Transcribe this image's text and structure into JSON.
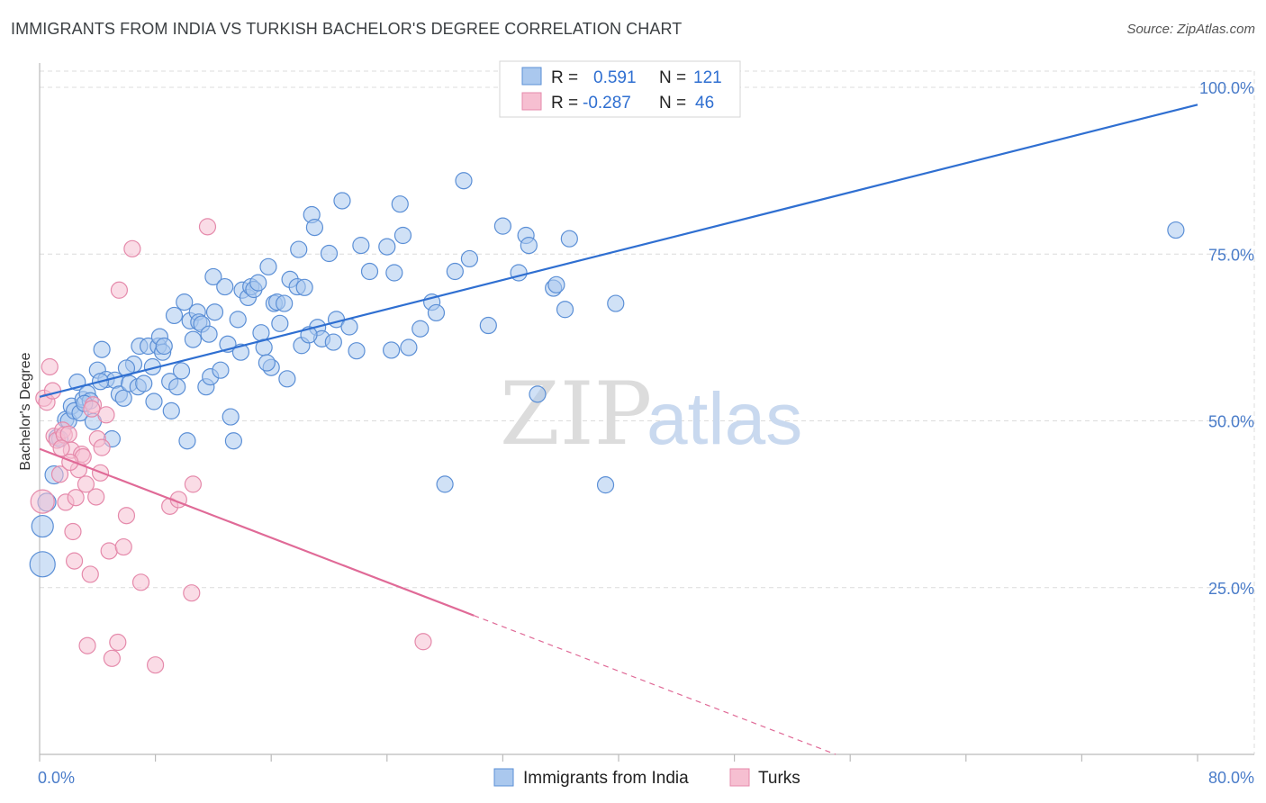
{
  "title": "IMMIGRANTS FROM INDIA VS TURKISH BACHELOR'S DEGREE CORRELATION CHART",
  "source": "Source: ZipAtlas.com",
  "watermark": {
    "zip": "ZIP",
    "atlas": "atlas"
  },
  "colors": {
    "blue_fill": "#aac8ee",
    "blue_stroke": "#5b8fd6",
    "blue_line": "#2f6fd1",
    "pink_fill": "#f6bfd1",
    "pink_stroke": "#e58aab",
    "pink_line": "#e06a97",
    "grid": "#dcdcdc",
    "tick_label": "#4a7cc9"
  },
  "legend": {
    "rows": [
      {
        "r_label": "R = ",
        "r_value": "0.591",
        "n_label": "N = ",
        "n_value": "121"
      },
      {
        "r_label": "R = ",
        "r_value": "-0.287",
        "n_label": "N = ",
        "n_value": "46"
      }
    ]
  },
  "chart_data": {
    "type": "scatter",
    "ylabel": "Bachelor's Degree",
    "xlim": [
      0,
      80
    ],
    "ylim": [
      0,
      105
    ],
    "x_tick_labels": [
      "0.0%",
      "80.0%"
    ],
    "y_ticks": [
      {
        "value": 25,
        "label": "25.0%"
      },
      {
        "value": 50,
        "label": "50.0%"
      },
      {
        "value": 75,
        "label": "75.0%"
      },
      {
        "value": 100,
        "label": "100.0%"
      }
    ],
    "grid": true,
    "series": [
      {
        "name": "Immigrants from India",
        "trend": {
          "x0": 0,
          "y0": 53.6,
          "x1": 80,
          "y1": 97.4,
          "solid_to": 80
        },
        "points": [
          [
            0.2,
            28.5,
            14
          ],
          [
            0.2,
            34.2,
            12
          ],
          [
            0.5,
            37.8,
            10
          ],
          [
            1.0,
            41.9,
            10
          ],
          [
            1.2,
            47.5,
            9
          ],
          [
            1.4,
            47.3,
            9
          ],
          [
            1.8,
            50.2,
            9
          ],
          [
            2.0,
            50.0,
            9
          ],
          [
            2.2,
            52.2,
            9
          ],
          [
            2.4,
            51.5,
            9
          ],
          [
            2.6,
            55.8,
            9
          ],
          [
            2.8,
            51.2,
            9
          ],
          [
            3.0,
            53.2,
            9
          ],
          [
            3.3,
            54.1,
            9
          ],
          [
            3.5,
            53.0,
            9
          ],
          [
            3.7,
            49.9,
            9
          ],
          [
            4.0,
            57.6,
            9
          ],
          [
            4.3,
            60.7,
            9
          ],
          [
            4.6,
            56.2,
            9
          ],
          [
            5.0,
            47.3,
            9
          ],
          [
            5.2,
            56.1,
            9
          ],
          [
            5.5,
            54.0,
            9
          ],
          [
            5.8,
            53.4,
            9
          ],
          [
            6.2,
            55.6,
            9
          ],
          [
            6.5,
            58.5,
            9
          ],
          [
            6.8,
            55.1,
            9
          ],
          [
            6.9,
            61.2,
            9
          ],
          [
            7.2,
            55.6,
            9
          ],
          [
            7.5,
            61.2,
            9
          ],
          [
            7.8,
            58.1,
            9
          ],
          [
            7.9,
            52.9,
            9
          ],
          [
            8.2,
            61.2,
            9
          ],
          [
            8.3,
            62.6,
            9
          ],
          [
            8.5,
            60.3,
            9
          ],
          [
            8.6,
            61.2,
            9
          ],
          [
            9.0,
            55.9,
            9
          ],
          [
            9.3,
            65.8,
            9
          ],
          [
            9.5,
            55.1,
            9
          ],
          [
            9.8,
            57.5,
            9
          ],
          [
            10.0,
            67.8,
            9
          ],
          [
            10.2,
            47.0,
            9
          ],
          [
            10.4,
            65.0,
            9
          ],
          [
            10.6,
            62.2,
            9
          ],
          [
            10.9,
            66.3,
            9
          ],
          [
            11.0,
            64.8,
            9
          ],
          [
            11.2,
            64.5,
            9
          ],
          [
            11.5,
            55.1,
            9
          ],
          [
            11.8,
            56.6,
            9
          ],
          [
            12.0,
            71.6,
            9
          ],
          [
            12.1,
            66.3,
            9
          ],
          [
            12.5,
            57.6,
            9
          ],
          [
            12.8,
            70.1,
            9
          ],
          [
            13.0,
            61.5,
            9
          ],
          [
            13.2,
            50.6,
            9
          ],
          [
            13.4,
            47.0,
            9
          ],
          [
            13.7,
            65.2,
            9
          ],
          [
            14.0,
            69.6,
            9
          ],
          [
            14.4,
            68.5,
            9
          ],
          [
            14.6,
            70.1,
            9
          ],
          [
            14.8,
            69.7,
            9
          ],
          [
            15.1,
            70.7,
            9
          ],
          [
            15.3,
            63.2,
            9
          ],
          [
            15.5,
            61.0,
            9
          ],
          [
            15.8,
            73.1,
            9
          ],
          [
            16.0,
            58.0,
            9
          ],
          [
            16.2,
            67.6,
            9
          ],
          [
            16.4,
            67.8,
            9
          ],
          [
            16.6,
            64.6,
            9
          ],
          [
            16.9,
            67.6,
            9
          ],
          [
            17.1,
            56.3,
            9
          ],
          [
            17.3,
            71.2,
            9
          ],
          [
            17.8,
            70.1,
            9
          ],
          [
            17.9,
            75.7,
            9
          ],
          [
            18.1,
            61.3,
            9
          ],
          [
            18.3,
            70.0,
            9
          ],
          [
            18.8,
            80.9,
            9
          ],
          [
            19.0,
            79.0,
            9
          ],
          [
            19.2,
            64.0,
            9
          ],
          [
            19.5,
            62.3,
            9
          ],
          [
            20.0,
            75.1,
            9
          ],
          [
            20.3,
            61.8,
            9
          ],
          [
            20.5,
            65.2,
            9
          ],
          [
            20.9,
            83.0,
            9
          ],
          [
            21.4,
            64.1,
            9
          ],
          [
            22.2,
            76.3,
            9
          ],
          [
            22.8,
            72.4,
            9
          ],
          [
            24.0,
            76.1,
            9
          ],
          [
            24.3,
            60.6,
            9
          ],
          [
            24.5,
            72.2,
            9
          ],
          [
            24.9,
            82.5,
            9
          ],
          [
            25.5,
            61.0,
            9
          ],
          [
            25.1,
            77.8,
            9
          ],
          [
            27.1,
            67.8,
            9
          ],
          [
            27.4,
            66.2,
            9
          ],
          [
            28.7,
            72.4,
            9
          ],
          [
            29.7,
            74.3,
            9
          ],
          [
            28.0,
            40.5,
            9
          ],
          [
            29.3,
            86.0,
            9
          ],
          [
            31.0,
            64.3,
            9
          ],
          [
            32.0,
            79.2,
            9
          ],
          [
            33.1,
            72.2,
            9
          ],
          [
            33.6,
            77.8,
            9
          ],
          [
            33.8,
            76.3,
            9
          ],
          [
            34.4,
            54.0,
            9
          ],
          [
            35.5,
            69.9,
            9
          ],
          [
            35.7,
            70.4,
            9
          ],
          [
            36.3,
            66.7,
            9
          ],
          [
            36.6,
            77.3,
            9
          ],
          [
            39.1,
            40.4,
            9
          ],
          [
            39.8,
            67.6,
            9
          ],
          [
            78.5,
            78.6,
            9
          ],
          [
            4.2,
            55.9,
            9
          ],
          [
            3.1,
            52.6,
            9
          ],
          [
            6.0,
            57.9,
            9
          ],
          [
            9.1,
            51.5,
            9
          ],
          [
            11.7,
            63.0,
            9
          ],
          [
            13.9,
            60.3,
            9
          ],
          [
            15.7,
            58.7,
            9
          ],
          [
            18.6,
            62.9,
            9
          ],
          [
            21.9,
            60.5,
            9
          ],
          [
            26.3,
            63.8,
            9
          ]
        ]
      },
      {
        "name": "Turks",
        "trend": {
          "x0": 0,
          "y0": 45.8,
          "x1": 55,
          "y1": 0,
          "solid_to": 30
        },
        "points": [
          [
            0.2,
            37.9,
            13
          ],
          [
            0.3,
            53.4,
            9
          ],
          [
            0.5,
            52.8,
            9
          ],
          [
            0.7,
            58.1,
            9
          ],
          [
            0.9,
            54.5,
            9
          ],
          [
            1.0,
            47.7,
            9
          ],
          [
            1.2,
            47.1,
            9
          ],
          [
            1.4,
            42.0,
            9
          ],
          [
            1.6,
            48.6,
            9
          ],
          [
            1.7,
            47.9,
            9
          ],
          [
            1.8,
            37.8,
            9
          ],
          [
            2.0,
            48.0,
            9
          ],
          [
            2.2,
            45.6,
            9
          ],
          [
            2.3,
            33.4,
            9
          ],
          [
            2.4,
            29.0,
            9
          ],
          [
            2.5,
            38.5,
            9
          ],
          [
            2.7,
            42.7,
            9
          ],
          [
            2.9,
            45.0,
            9
          ],
          [
            3.0,
            44.6,
            9
          ],
          [
            3.2,
            40.5,
            9
          ],
          [
            3.3,
            16.3,
            9
          ],
          [
            3.5,
            27.0,
            9
          ],
          [
            3.7,
            52.4,
            9
          ],
          [
            3.9,
            38.6,
            9
          ],
          [
            4.0,
            47.3,
            9
          ],
          [
            4.2,
            42.2,
            9
          ],
          [
            4.3,
            46.0,
            9
          ],
          [
            4.6,
            50.9,
            9
          ],
          [
            4.8,
            30.5,
            9
          ],
          [
            5.0,
            14.4,
            9
          ],
          [
            5.4,
            16.8,
            9
          ],
          [
            5.5,
            69.6,
            9
          ],
          [
            5.8,
            31.1,
            9
          ],
          [
            6.0,
            35.8,
            9
          ],
          [
            6.4,
            75.8,
            9
          ],
          [
            7.0,
            25.8,
            9
          ],
          [
            8.0,
            13.4,
            9
          ],
          [
            9.0,
            37.2,
            9
          ],
          [
            9.6,
            38.2,
            9
          ],
          [
            10.6,
            40.5,
            9
          ],
          [
            10.5,
            24.2,
            9
          ],
          [
            11.6,
            79.1,
            9
          ],
          [
            26.5,
            16.9,
            9
          ],
          [
            2.1,
            43.8,
            9
          ],
          [
            3.6,
            51.8,
            9
          ],
          [
            1.5,
            45.9,
            9
          ]
        ]
      }
    ]
  }
}
